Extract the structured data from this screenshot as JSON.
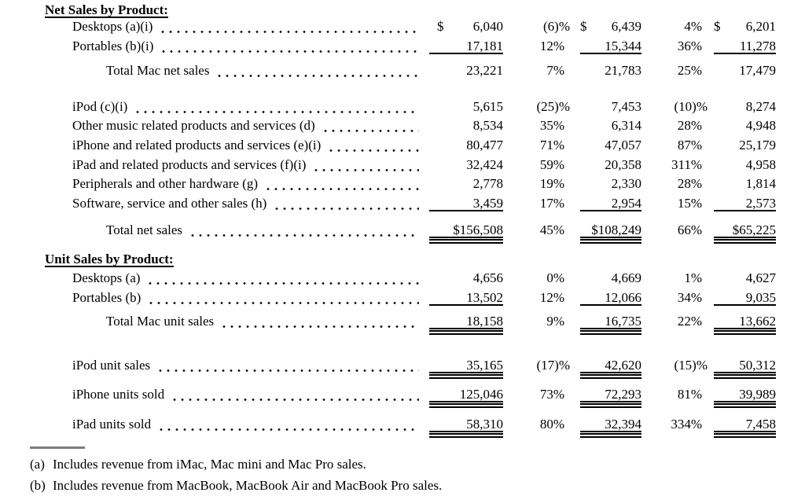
{
  "table": {
    "sections": [
      {
        "title": "Net Sales by Product:",
        "rows": [
          {
            "label": "Desktops (a)(i)",
            "indent": 1,
            "rule": "none",
            "cur_tight": false,
            "c1": {
              "cur": "$",
              "val": "6,040"
            },
            "p1": "(6)%",
            "c2": {
              "cur": "$",
              "val": "6,439"
            },
            "p2": "4%",
            "c3": {
              "cur": "$",
              "val": "6,201"
            }
          },
          {
            "label": "Portables (b)(i)",
            "indent": 1,
            "rule": "under",
            "cur_tight": false,
            "c1": {
              "val": "17,181"
            },
            "p1": "12%",
            "c2": {
              "val": "15,344"
            },
            "p2": "36%",
            "c3": {
              "val": "11,278"
            }
          },
          {
            "label": "Total Mac net sales",
            "indent": 2,
            "rule": "none",
            "cur_tight": false,
            "c1": {
              "val": "23,221"
            },
            "p1": "7%",
            "c2": {
              "val": "21,783"
            },
            "p2": "25%",
            "c3": {
              "val": "17,479"
            }
          },
          {
            "label": "iPod (c)(i)",
            "indent": 1,
            "rule": "none",
            "cur_tight": false,
            "c1": {
              "val": "5,615"
            },
            "p1": "(25)%",
            "c2": {
              "val": "7,453"
            },
            "p2": "(10)%",
            "c3": {
              "val": "8,274"
            }
          },
          {
            "label": "Other music related products and services (d)",
            "indent": 1,
            "rule": "none",
            "cur_tight": false,
            "c1": {
              "val": "8,534"
            },
            "p1": "35%",
            "c2": {
              "val": "6,314"
            },
            "p2": "28%",
            "c3": {
              "val": "4,948"
            }
          },
          {
            "label": "iPhone and related products and services (e)(i)",
            "indent": 1,
            "rule": "none",
            "cur_tight": false,
            "c1": {
              "val": "80,477"
            },
            "p1": "71%",
            "c2": {
              "val": "47,057"
            },
            "p2": "87%",
            "c3": {
              "val": "25,179"
            }
          },
          {
            "label": "iPad and related products and services (f)(i)",
            "indent": 1,
            "rule": "none",
            "cur_tight": false,
            "c1": {
              "val": "32,424"
            },
            "p1": "59%",
            "c2": {
              "val": "20,358"
            },
            "p2": "311%",
            "c3": {
              "val": "4,958"
            }
          },
          {
            "label": "Peripherals and other hardware (g)",
            "indent": 1,
            "rule": "none",
            "cur_tight": false,
            "c1": {
              "val": "2,778"
            },
            "p1": "19%",
            "c2": {
              "val": "2,330"
            },
            "p2": "28%",
            "c3": {
              "val": "1,814"
            }
          },
          {
            "label": "Software, service and other sales (h)",
            "indent": 1,
            "rule": "under",
            "cur_tight": false,
            "c1": {
              "val": "3,459"
            },
            "p1": "17%",
            "c2": {
              "val": "2,954"
            },
            "p2": "15%",
            "c3": {
              "val": "2,573"
            }
          },
          {
            "label": "Total net sales",
            "indent": 2,
            "rule": "double",
            "cur_tight": true,
            "c1": {
              "cur": "$",
              "val": "156,508"
            },
            "p1": "45%",
            "c2": {
              "cur": "$",
              "val": "108,249"
            },
            "p2": "66%",
            "c3": {
              "cur": "$",
              "val": "65,225"
            }
          }
        ]
      },
      {
        "title": "Unit Sales by Product:",
        "rows": [
          {
            "label": "Desktops (a)",
            "indent": 1,
            "rule": "none",
            "cur_tight": false,
            "c1": {
              "val": "4,656"
            },
            "p1": "0%",
            "c2": {
              "val": "4,669"
            },
            "p2": "1%",
            "c3": {
              "val": "4,627"
            }
          },
          {
            "label": "Portables (b)",
            "indent": 1,
            "rule": "under",
            "cur_tight": false,
            "c1": {
              "val": "13,502"
            },
            "p1": "12%",
            "c2": {
              "val": "12,066"
            },
            "p2": "34%",
            "c3": {
              "val": "9,035"
            }
          },
          {
            "label": "Total Mac unit sales",
            "indent": 2,
            "rule": "double",
            "cur_tight": false,
            "c1": {
              "val": "18,158"
            },
            "p1": "9%",
            "c2": {
              "val": "16,735"
            },
            "p2": "22%",
            "c3": {
              "val": "13,662"
            }
          },
          {
            "label": "iPod unit sales",
            "indent": 1,
            "rule": "double",
            "cur_tight": false,
            "c1": {
              "val": "35,165"
            },
            "p1": "(17)%",
            "c2": {
              "val": "42,620"
            },
            "p2": "(15)%",
            "c3": {
              "val": "50,312"
            }
          },
          {
            "label": "iPhone units sold",
            "indent": 1,
            "rule": "double",
            "cur_tight": false,
            "c1": {
              "val": "125,046"
            },
            "p1": "73%",
            "c2": {
              "val": "72,293"
            },
            "p2": "81%",
            "c3": {
              "val": "39,989"
            }
          },
          {
            "label": "iPad units sold",
            "indent": 1,
            "rule": "double",
            "cur_tight": false,
            "c1": {
              "val": "58,310"
            },
            "p1": "80%",
            "c2": {
              "val": "32,394"
            },
            "p2": "334%",
            "c3": {
              "val": "7,458"
            }
          }
        ]
      }
    ]
  },
  "footnotes": [
    {
      "marker": "(a)",
      "text": "Includes revenue from iMac, Mac mini and Mac Pro sales."
    },
    {
      "marker": "(b)",
      "text": "Includes revenue from MacBook, MacBook Air and MacBook Pro sales."
    }
  ]
}
